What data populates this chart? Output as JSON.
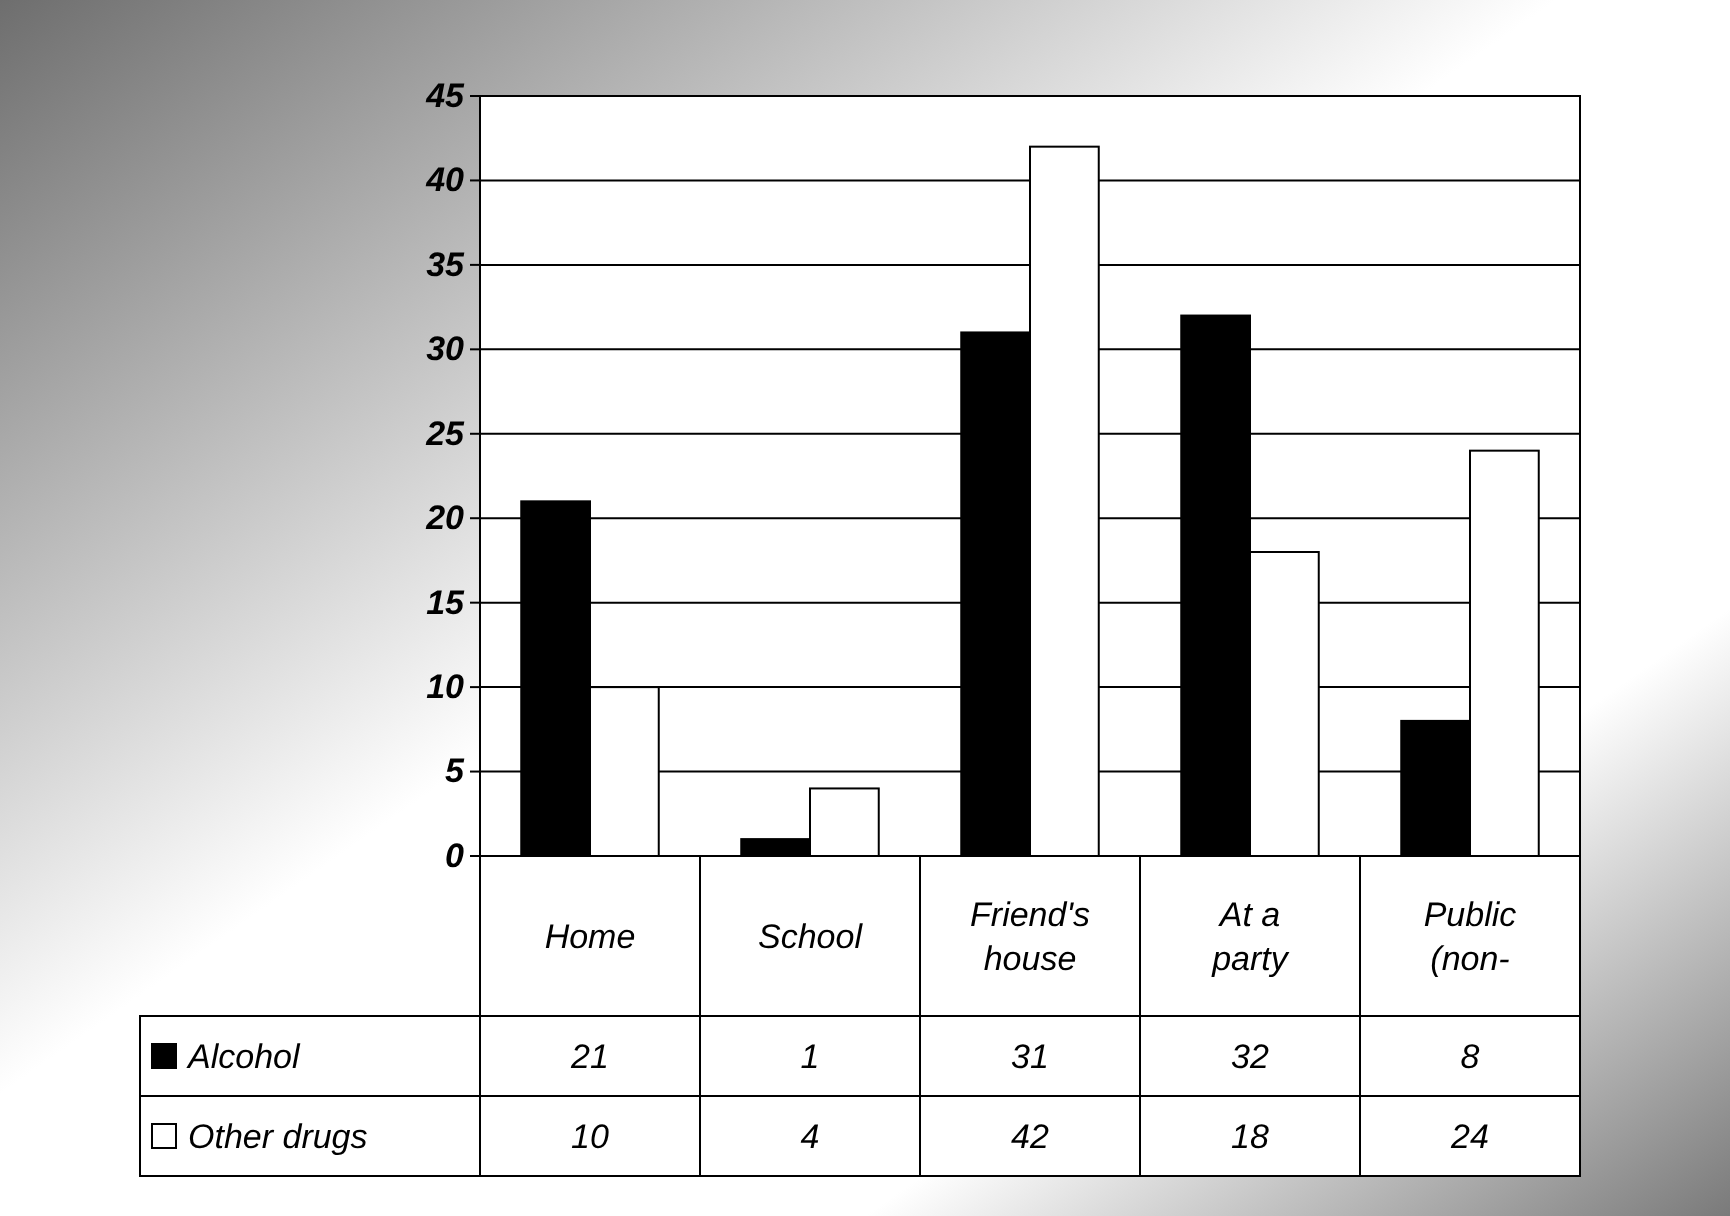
{
  "chart_data": {
    "type": "bar",
    "categories": [
      "Home",
      "School",
      "Friend's house",
      "At a party",
      "Public (non-"
    ],
    "series": [
      {
        "name": "Alcohol",
        "color": "#000000",
        "values": [
          21,
          1,
          31,
          32,
          8
        ]
      },
      {
        "name": "Other drugs",
        "color": "#ffffff",
        "values": [
          10,
          4,
          42,
          18,
          24
        ]
      }
    ],
    "ylim": [
      0,
      45
    ],
    "yticks": [
      0,
      5,
      10,
      15,
      20,
      25,
      30,
      35,
      40,
      45
    ],
    "grid": "y",
    "legend": "bottom",
    "data_labels": true
  }
}
